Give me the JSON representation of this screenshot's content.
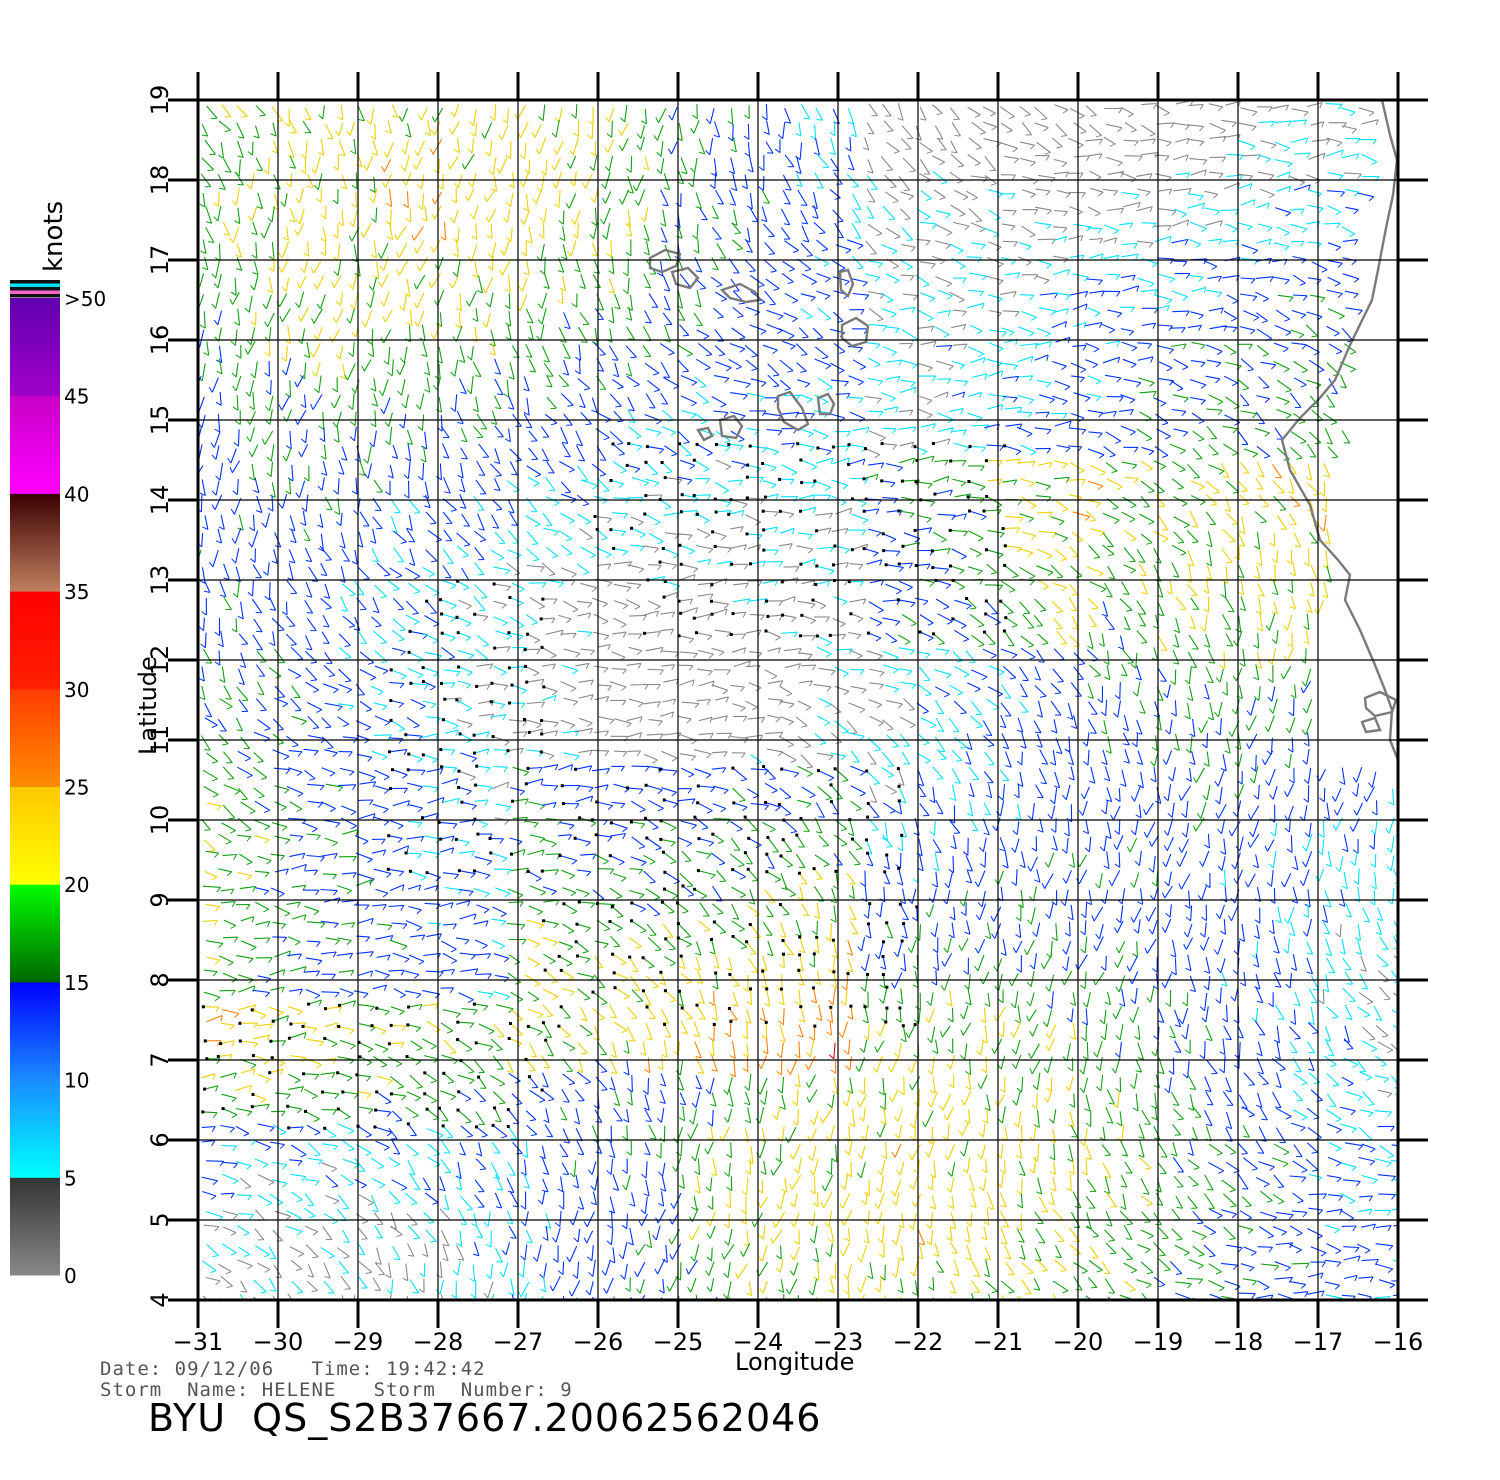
{
  "colorbar": {
    "unit_label": "knots",
    "tick_labels": [
      "0",
      "5",
      "10",
      "15",
      "20",
      "25",
      "30",
      "35",
      "40",
      "45",
      ">50"
    ],
    "bands": [
      {
        "from": 0,
        "to": 5,
        "colors": [
          "#888888",
          "#333333"
        ]
      },
      {
        "from": 5,
        "to": 10,
        "colors": [
          "#00ffff",
          "#1a8cff"
        ]
      },
      {
        "from": 10,
        "to": 15,
        "colors": [
          "#1a8cff",
          "#0000ff"
        ]
      },
      {
        "from": 15,
        "to": 20,
        "colors": [
          "#006600",
          "#00ff00"
        ]
      },
      {
        "from": 20,
        "to": 25,
        "colors": [
          "#ffff00",
          "#ffc800"
        ]
      },
      {
        "from": 25,
        "to": 30,
        "colors": [
          "#ff8c00",
          "#ff3c00"
        ]
      },
      {
        "from": 30,
        "to": 35,
        "colors": [
          "#ff2000",
          "#ff0000"
        ]
      },
      {
        "from": 35,
        "to": 40,
        "colors": [
          "#c08060",
          "#3a0000"
        ]
      },
      {
        "from": 40,
        "to": 45,
        "colors": [
          "#ff00ff",
          "#c800c8"
        ]
      },
      {
        "from": 45,
        "to": 50,
        "colors": [
          "#a000c8",
          "#6000b0"
        ]
      }
    ],
    "top_stripe_colors": [
      "#111111",
      "#00e0ff",
      "#111111",
      "#ff66cc",
      "#111111"
    ]
  },
  "axes": {
    "xlabel": "Longitude",
    "ylabel": "Latitude",
    "xlim": [
      -31,
      -16
    ],
    "ylim": [
      4,
      19
    ],
    "x_ticks": [
      "-31",
      "-30",
      "-29",
      "-28",
      "-27",
      "-26",
      "-25",
      "-24",
      "-23",
      "-22",
      "-21",
      "-20",
      "-19",
      "-18",
      "-17",
      "-16"
    ],
    "y_ticks": [
      "4",
      "5",
      "6",
      "7",
      "8",
      "9",
      "10",
      "11",
      "12",
      "13",
      "14",
      "15",
      "16",
      "17",
      "18",
      "19"
    ],
    "grid": true
  },
  "wind_colors": {
    "calm": "#888888",
    "light": "#00e0ff",
    "moderate": "#0033ff",
    "fresh": "#10a010",
    "strong": "#f0d000",
    "gale": "#ff8000",
    "storm": "#e00000"
  },
  "rain_flag_color": "#000000",
  "coastline_color": "#7a7a7a",
  "info": {
    "date_line": "Date: 09/12/06   Time: 19:42:42",
    "storm_line": "Storm  Name: HELENE   Storm  Number: 9"
  },
  "footer": {
    "title": "BYU  QS_S2B37667.20062562046"
  }
}
